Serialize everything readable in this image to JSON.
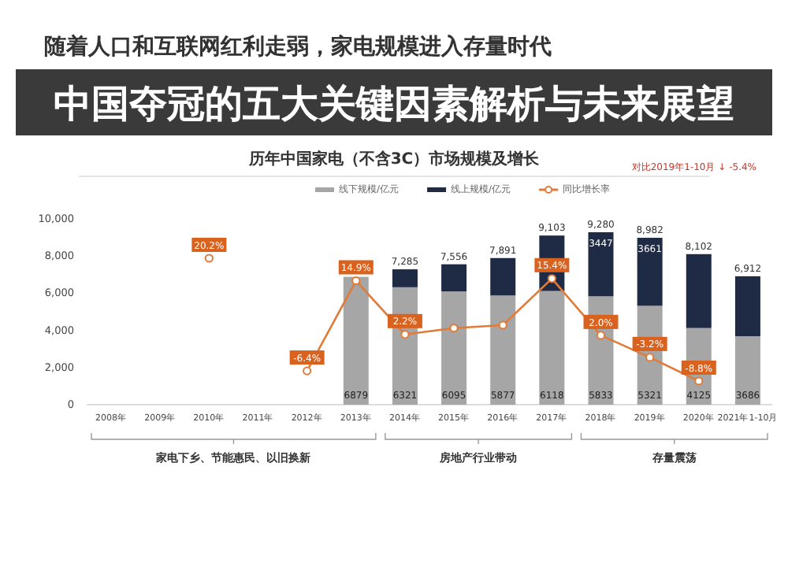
{
  "chart_data": {
    "type": "bar",
    "stacked": true,
    "title": "随着人口和互联网红利走弱，家电规模进入存量时代",
    "subtitle": "历年中国家电（不含3C）市场规模及增长",
    "annotations": [
      "对比2019年1-10月 ↓ -5.4%",
      "中国夺冠的五大关键因素解析与未来展望",
      "家电下乡、节能惠民、以旧换新",
      "房地产行业带动",
      "存量震荡"
    ],
    "categories": [
      "2008年",
      "2009年",
      "2010年",
      "2011年",
      "2012年",
      "2013年",
      "2014年",
      "2015年",
      "2016年",
      "2017年",
      "2018年",
      "2019年",
      "2020年",
      "2021年1-10月"
    ],
    "series": [
      {
        "name": "线下规模/亿元",
        "color": "#a6a6a6",
        "values": [
          null,
          null,
          null,
          null,
          null,
          6879,
          6321,
          6095,
          5877,
          6118,
          5833,
          5321,
          4125,
          3686
        ],
        "value_labels": [
          null,
          null,
          null,
          null,
          null,
          "6879",
          "6321",
          "6095",
          "5877",
          "6118",
          "5833",
          "5321",
          "4125",
          "3686"
        ]
      },
      {
        "name": "线上规模/亿元",
        "color": "#1f2a44",
        "values": [
          null,
          null,
          null,
          null,
          null,
          null,
          964,
          1461,
          2014,
          2985,
          3447,
          3661,
          3977,
          3226
        ],
        "value_labels": [
          null,
          null,
          null,
          null,
          null,
          null,
          null,
          null,
          null,
          null,
          "3447",
          "3661",
          null,
          null
        ]
      },
      {
        "name": "同比增长率",
        "type": "line",
        "axis": "y2",
        "color": "#e07b39",
        "marker": "circle",
        "values": [
          null,
          null,
          20.2,
          null,
          -6.4,
          14.9,
          2.2,
          3.7,
          4.4,
          15.4,
          2.0,
          -3.2,
          -8.8,
          null
        ],
        "value_labels": [
          null,
          null,
          "20.2%",
          null,
          "-6.4%",
          "14.9%",
          "2.2%",
          null,
          null,
          "15.4%",
          "2.0%",
          "-3.2%",
          "-8.8%",
          null
        ]
      }
    ],
    "totals": [
      null,
      null,
      null,
      null,
      null,
      null,
      "7,285",
      "7,556",
      "7,891",
      "9,103",
      "9,280",
      "8,982",
      "8,102",
      "6,912"
    ],
    "ylim": [
      0,
      10000
    ],
    "yticks": [
      {
        "value": 0,
        "label": "0"
      },
      {
        "value": 2000,
        "label": "2,000"
      },
      {
        "value": 4000,
        "label": "4,000"
      },
      {
        "value": 6000,
        "label": "6,000"
      },
      {
        "value": 8000,
        "label": "8,000"
      },
      {
        "value": 10000,
        "label": "10,000"
      }
    ],
    "legend": "top",
    "grid": false
  }
}
